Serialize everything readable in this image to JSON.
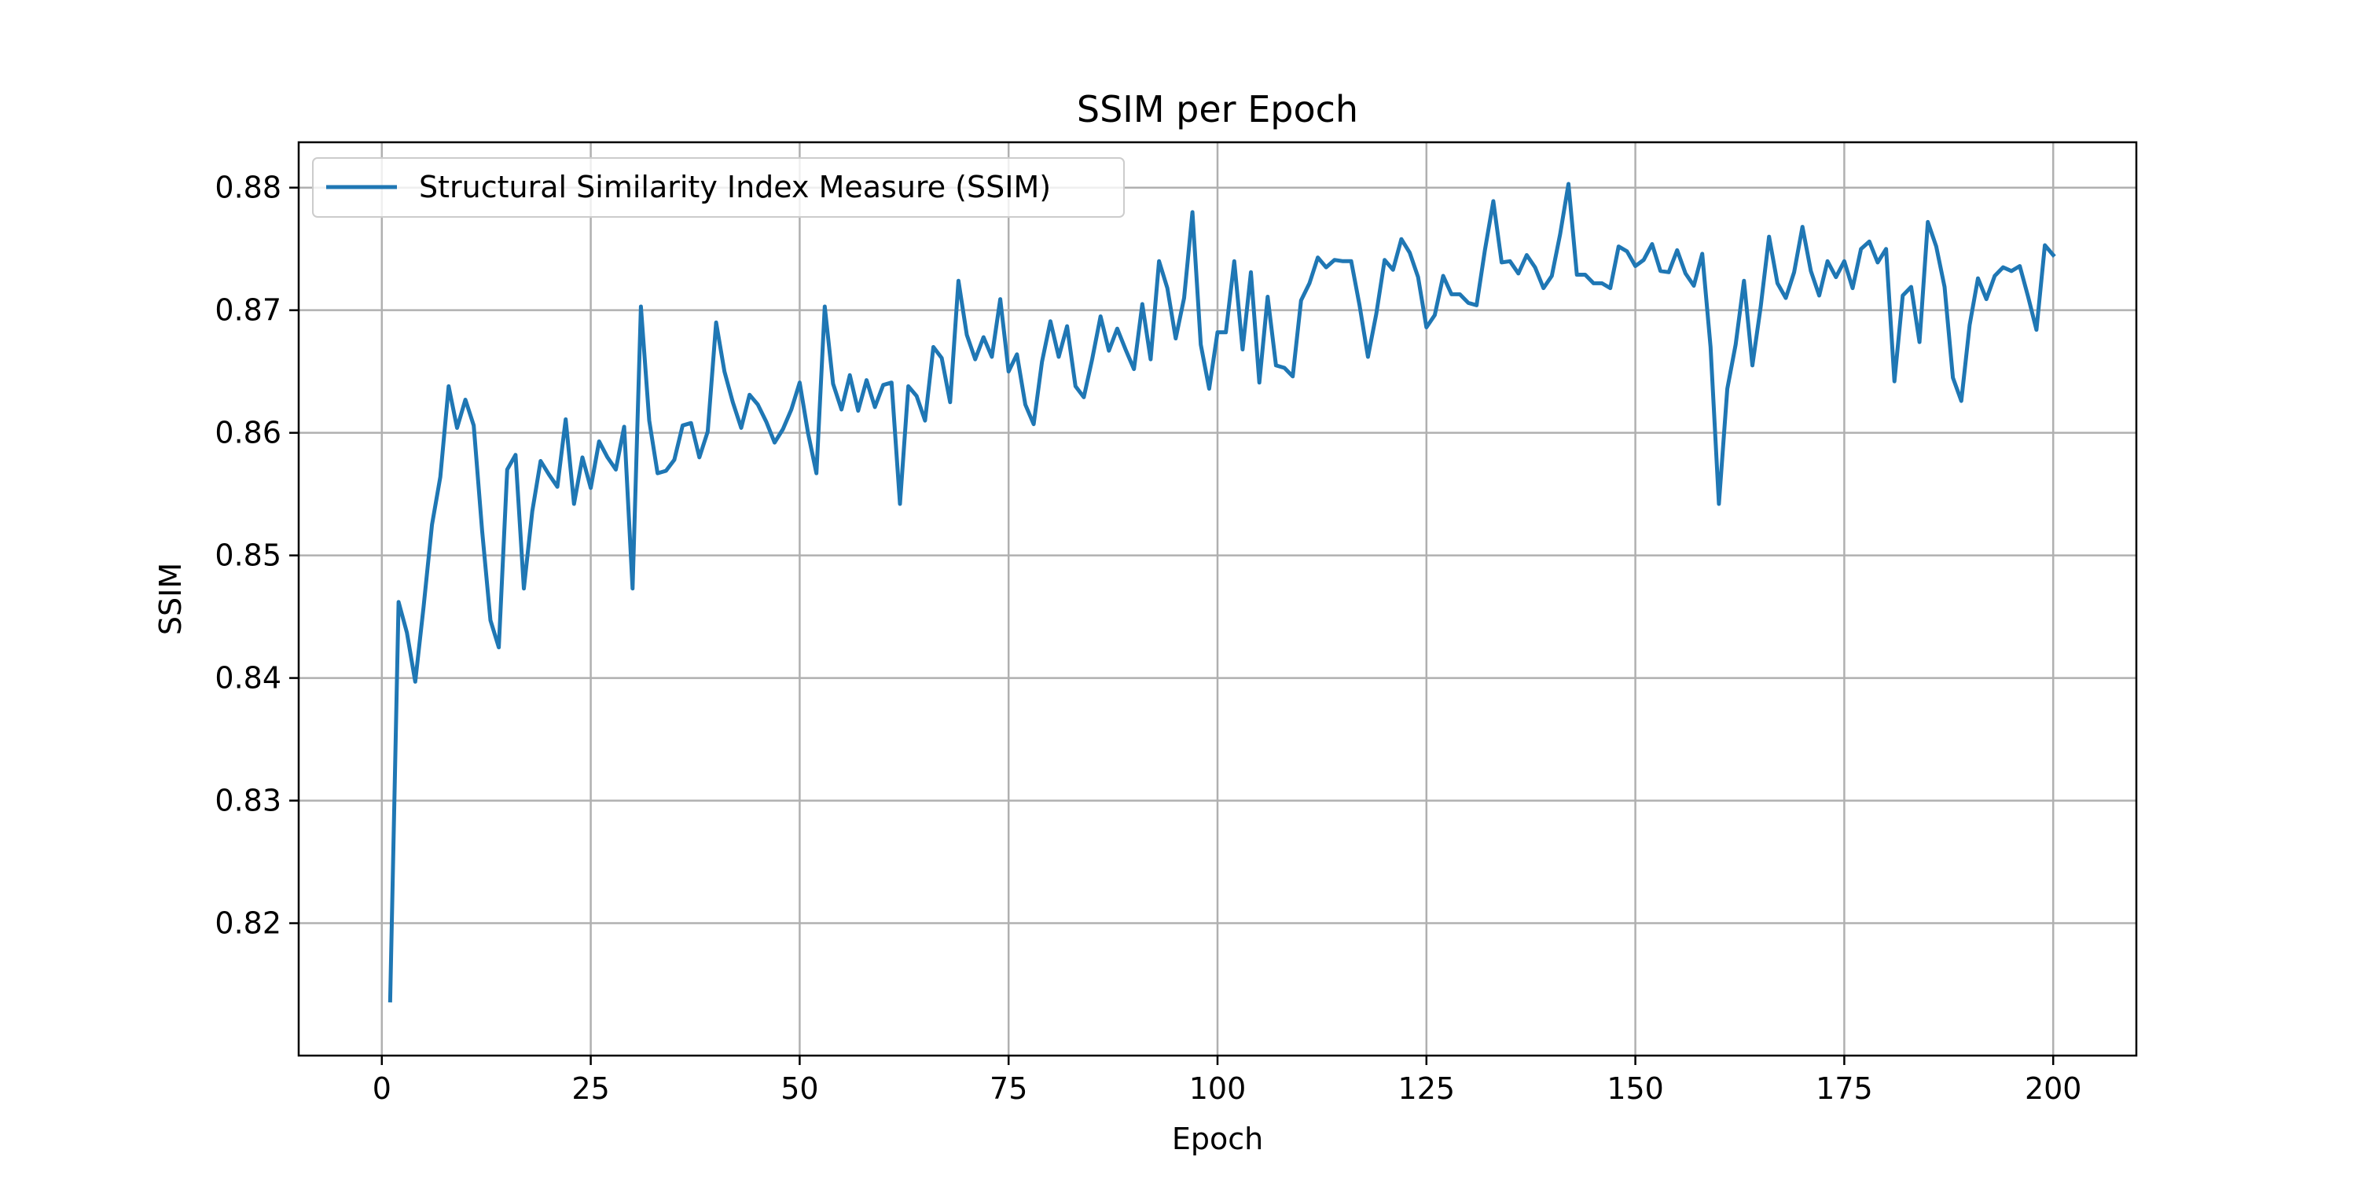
{
  "chart_data": {
    "type": "line",
    "title": "SSIM per Epoch",
    "xlabel": "Epoch",
    "ylabel": "SSIM",
    "xlim": [
      -9.95,
      209.95
    ],
    "ylim": [
      0.8092,
      0.8837
    ],
    "xticks": [
      0,
      25,
      50,
      75,
      100,
      125,
      150,
      175,
      200
    ],
    "yticks": [
      0.82,
      0.83,
      0.84,
      0.85,
      0.86,
      0.87,
      0.88
    ],
    "xtick_labels": [
      "0",
      "25",
      "50",
      "75",
      "100",
      "125",
      "150",
      "175",
      "200"
    ],
    "ytick_labels": [
      "0.82",
      "0.83",
      "0.84",
      "0.85",
      "0.86",
      "0.87",
      "0.88"
    ],
    "grid": true,
    "legend_position": "upper-left",
    "series": [
      {
        "name": "Structural Similarity Index Measure (SSIM)",
        "color": "#1f77b4",
        "x": [
          1,
          2,
          3,
          4,
          5,
          6,
          7,
          8,
          9,
          10,
          11,
          12,
          13,
          14,
          15,
          16,
          17,
          18,
          19,
          20,
          21,
          22,
          23,
          24,
          25,
          26,
          27,
          28,
          29,
          30,
          31,
          32,
          33,
          34,
          35,
          36,
          37,
          38,
          39,
          40,
          41,
          42,
          43,
          44,
          45,
          46,
          47,
          48,
          49,
          50,
          51,
          52,
          53,
          54,
          55,
          56,
          57,
          58,
          59,
          60,
          61,
          62,
          63,
          64,
          65,
          66,
          67,
          68,
          69,
          70,
          71,
          72,
          73,
          74,
          75,
          76,
          77,
          78,
          79,
          80,
          81,
          82,
          83,
          84,
          85,
          86,
          87,
          88,
          89,
          90,
          91,
          92,
          93,
          94,
          95,
          96,
          97,
          98,
          99,
          100,
          101,
          102,
          103,
          104,
          105,
          106,
          107,
          108,
          109,
          110,
          111,
          112,
          113,
          114,
          115,
          116,
          117,
          118,
          119,
          120,
          121,
          122,
          123,
          124,
          125,
          126,
          127,
          128,
          129,
          130,
          131,
          132,
          133,
          134,
          135,
          136,
          137,
          138,
          139,
          140,
          141,
          142,
          143,
          144,
          145,
          146,
          147,
          148,
          149,
          150,
          151,
          152,
          153,
          154,
          155,
          156,
          157,
          158,
          159,
          160,
          161,
          162,
          163,
          164,
          165,
          166,
          167,
          168,
          169,
          170,
          171,
          172,
          173,
          174,
          175,
          176,
          177,
          178,
          179,
          180,
          181,
          182,
          183,
          184,
          185,
          186,
          187,
          188,
          189,
          190,
          191,
          192,
          193,
          194,
          195,
          196,
          197,
          198,
          199,
          200
        ],
        "y": [
          0.8137,
          0.8462,
          0.8437,
          0.8397,
          0.8458,
          0.8525,
          0.8564,
          0.8638,
          0.8604,
          0.8627,
          0.8606,
          0.852,
          0.8447,
          0.8425,
          0.857,
          0.8582,
          0.8473,
          0.8536,
          0.8577,
          0.8566,
          0.8556,
          0.8611,
          0.8542,
          0.858,
          0.8555,
          0.8593,
          0.858,
          0.857,
          0.8605,
          0.8473,
          0.8703,
          0.861,
          0.8567,
          0.8569,
          0.8578,
          0.8606,
          0.8608,
          0.858,
          0.8601,
          0.869,
          0.865,
          0.8625,
          0.8604,
          0.8631,
          0.8623,
          0.8609,
          0.8592,
          0.8603,
          0.8619,
          0.8641,
          0.86,
          0.8567,
          0.8703,
          0.864,
          0.8619,
          0.8647,
          0.8618,
          0.8643,
          0.8621,
          0.8639,
          0.8641,
          0.8542,
          0.8638,
          0.863,
          0.861,
          0.867,
          0.8661,
          0.8625,
          0.8724,
          0.868,
          0.866,
          0.8678,
          0.8662,
          0.8709,
          0.865,
          0.8664,
          0.8623,
          0.8607,
          0.8658,
          0.8691,
          0.8662,
          0.8687,
          0.8638,
          0.8629,
          0.866,
          0.8695,
          0.8667,
          0.8685,
          0.8668,
          0.8652,
          0.8705,
          0.866,
          0.874,
          0.8718,
          0.8677,
          0.871,
          0.878,
          0.8672,
          0.8636,
          0.8682,
          0.8682,
          0.874,
          0.8668,
          0.8731,
          0.8641,
          0.8711,
          0.8655,
          0.8653,
          0.8646,
          0.8708,
          0.8722,
          0.8743,
          0.8735,
          0.8741,
          0.874,
          0.874,
          0.8704,
          0.8662,
          0.8697,
          0.8741,
          0.8733,
          0.8758,
          0.8747,
          0.8727,
          0.8686,
          0.8696,
          0.8728,
          0.8713,
          0.8713,
          0.8706,
          0.8704,
          0.8749,
          0.8789,
          0.8739,
          0.874,
          0.873,
          0.8745,
          0.8735,
          0.8718,
          0.8728,
          0.8762,
          0.8803,
          0.8729,
          0.8729,
          0.8722,
          0.8722,
          0.8718,
          0.8752,
          0.8748,
          0.8736,
          0.8741,
          0.8754,
          0.8732,
          0.8731,
          0.8749,
          0.873,
          0.872,
          0.8746,
          0.867,
          0.8542,
          0.8636,
          0.8672,
          0.8724,
          0.8655,
          0.8703,
          0.876,
          0.8722,
          0.871,
          0.8731,
          0.8768,
          0.8732,
          0.8712,
          0.874,
          0.8727,
          0.874,
          0.8718,
          0.875,
          0.8756,
          0.8739,
          0.875,
          0.8642,
          0.8712,
          0.8719,
          0.8674,
          0.8772,
          0.8752,
          0.8719,
          0.8645,
          0.8626,
          0.8688,
          0.8726,
          0.8709,
          0.8728,
          0.8735,
          0.8732,
          0.8736,
          0.8711,
          0.8684,
          0.8753,
          0.8745
        ]
      }
    ]
  }
}
